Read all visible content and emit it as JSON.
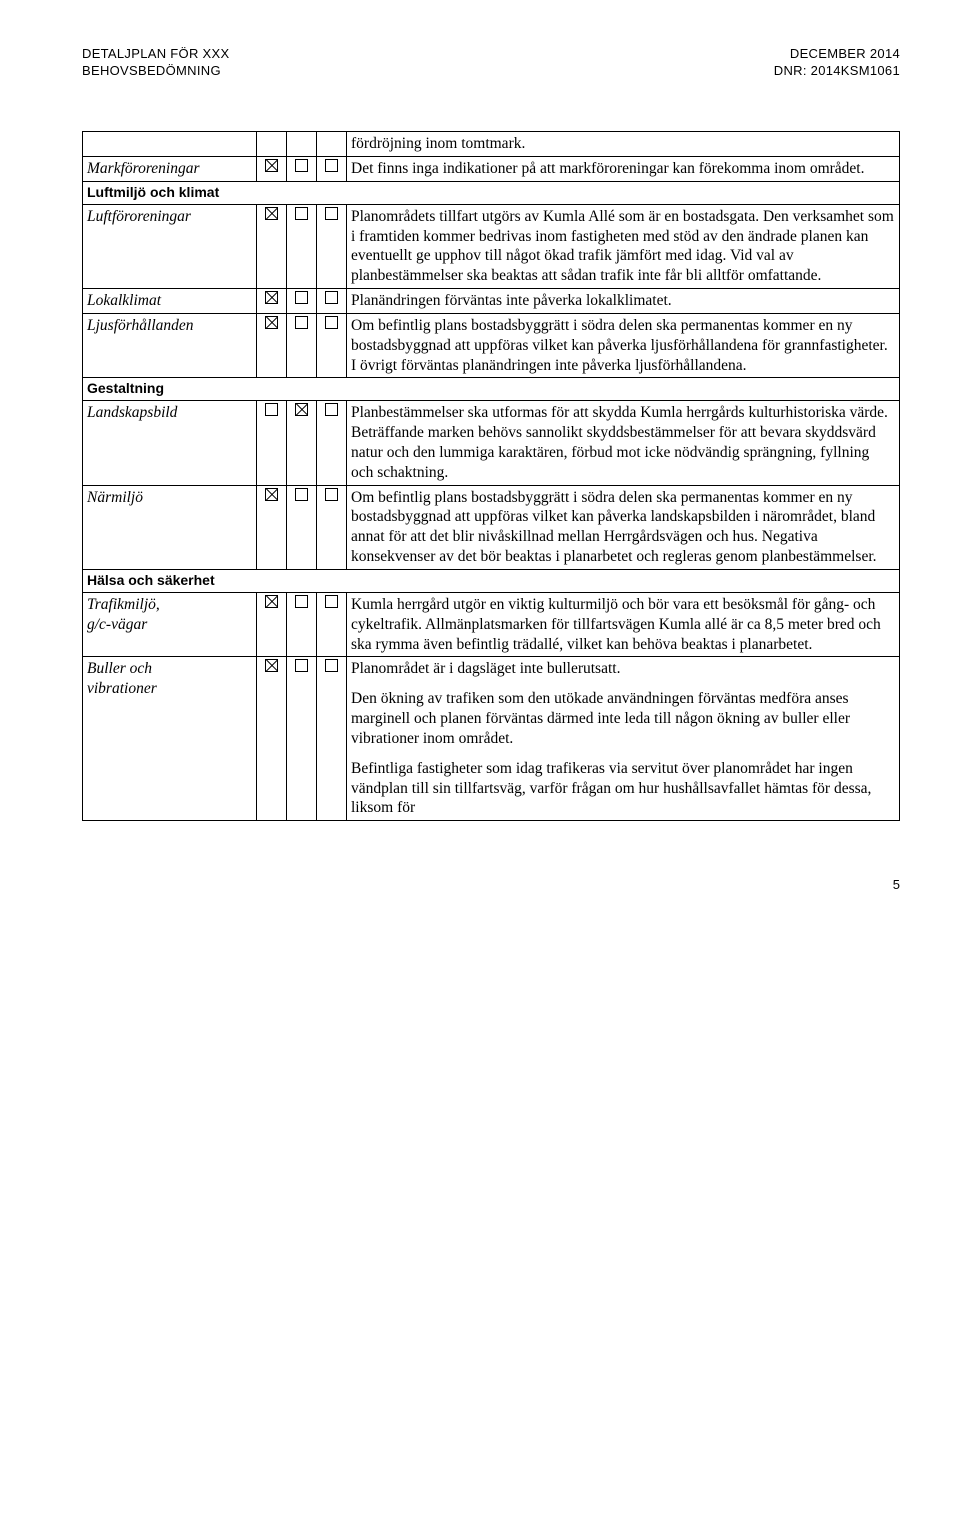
{
  "header": {
    "left_line1": "DETALJPLAN FÖR XXX",
    "left_line2": "BEHOVSBEDÖMNING",
    "right_line1": "DECEMBER 2014",
    "right_line2": "DNR: 2014KSM1061"
  },
  "rows": [
    {
      "type": "desc_only",
      "desc": [
        "fördröjning inom tomtmark."
      ]
    },
    {
      "type": "item",
      "label": "Markföroreningar",
      "checks": [
        true,
        false,
        false
      ],
      "desc": [
        "Det finns inga indikationer på att markföroreningar kan förekomma inom området."
      ]
    },
    {
      "type": "section",
      "label": "Luftmiljö och klimat"
    },
    {
      "type": "item",
      "label": "Luftföroreningar",
      "checks": [
        true,
        false,
        false
      ],
      "desc": [
        "Planområdets tillfart utgörs av Kumla Allé som är en bostadsgata. Den verksamhet som i framtiden kommer bedrivas inom fastigheten med stöd av den ändrade planen kan eventuellt ge upphov till något ökad trafik jämfört med idag. Vid val av planbestämmelser ska beaktas att sådan trafik inte får bli alltför omfattande."
      ]
    },
    {
      "type": "item",
      "label": "Lokalklimat",
      "checks": [
        true,
        false,
        false
      ],
      "desc": [
        "Planändringen förväntas inte påverka lokalklimatet."
      ]
    },
    {
      "type": "item",
      "label": "Ljusförhållanden",
      "checks": [
        true,
        false,
        false
      ],
      "desc": [
        "Om befintlig plans bostadsbyggrätt i södra delen ska permanentas kommer en ny bostadsbyggnad att uppföras vilket kan påverka ljusförhållandena för grannfastigheter. I övrigt förväntas planändringen inte påverka ljusförhållandena."
      ]
    },
    {
      "type": "section",
      "label": "Gestaltning"
    },
    {
      "type": "item",
      "label": "Landskapsbild",
      "checks": [
        false,
        true,
        false
      ],
      "desc": [
        "Planbestämmelser ska utformas för att skydda Kumla herrgårds kulturhistoriska värde. Beträffande marken behövs sannolikt skyddsbestämmelser för att bevara skyddsvärd natur och den lummiga karaktären, förbud mot icke nödvändig sprängning, fyllning och schaktning."
      ]
    },
    {
      "type": "item",
      "label": "Närmiljö",
      "checks": [
        true,
        false,
        false
      ],
      "desc": [
        "Om befintlig plans bostadsbyggrätt i södra delen ska permanentas kommer en ny bostadsbyggnad att uppföras vilket kan påverka landskapsbilden i närområdet, bland annat för att det blir nivåskillnad mellan Herrgårdsvägen och hus. Negativa konsekvenser av det bör beaktas i planarbetet och regleras genom planbestämmelser."
      ]
    },
    {
      "type": "section",
      "label": "Hälsa och säkerhet"
    },
    {
      "type": "item",
      "label": "Trafikmiljö,\ng/c-vägar",
      "checks": [
        true,
        false,
        false
      ],
      "desc": [
        "Kumla herrgård utgör en viktig kulturmiljö och bör vara ett besöksmål för gång- och cykeltrafik. Allmänplatsmarken för tillfartsvägen Kumla allé är ca 8,5 meter bred och ska rymma även befintlig trädallé, vilket kan behöva beaktas i planarbetet."
      ]
    },
    {
      "type": "item",
      "label": "Buller och\nvibrationer",
      "checks": [
        true,
        false,
        false
      ],
      "desc": [
        "Planområdet är i dagsläget inte bullerutsatt.",
        "Den ökning av trafiken som den utökade användningen förväntas medföra anses marginell och planen förväntas därmed inte leda till någon ökning av buller eller vibrationer inom området.",
        "Befintliga fastigheter som idag trafikeras via servitut över planområdet har ingen vändplan till sin tillfartsväg, varför frågan om hur hushållsavfallet hämtas för dessa, liksom för"
      ]
    }
  ],
  "page_number": "5"
}
